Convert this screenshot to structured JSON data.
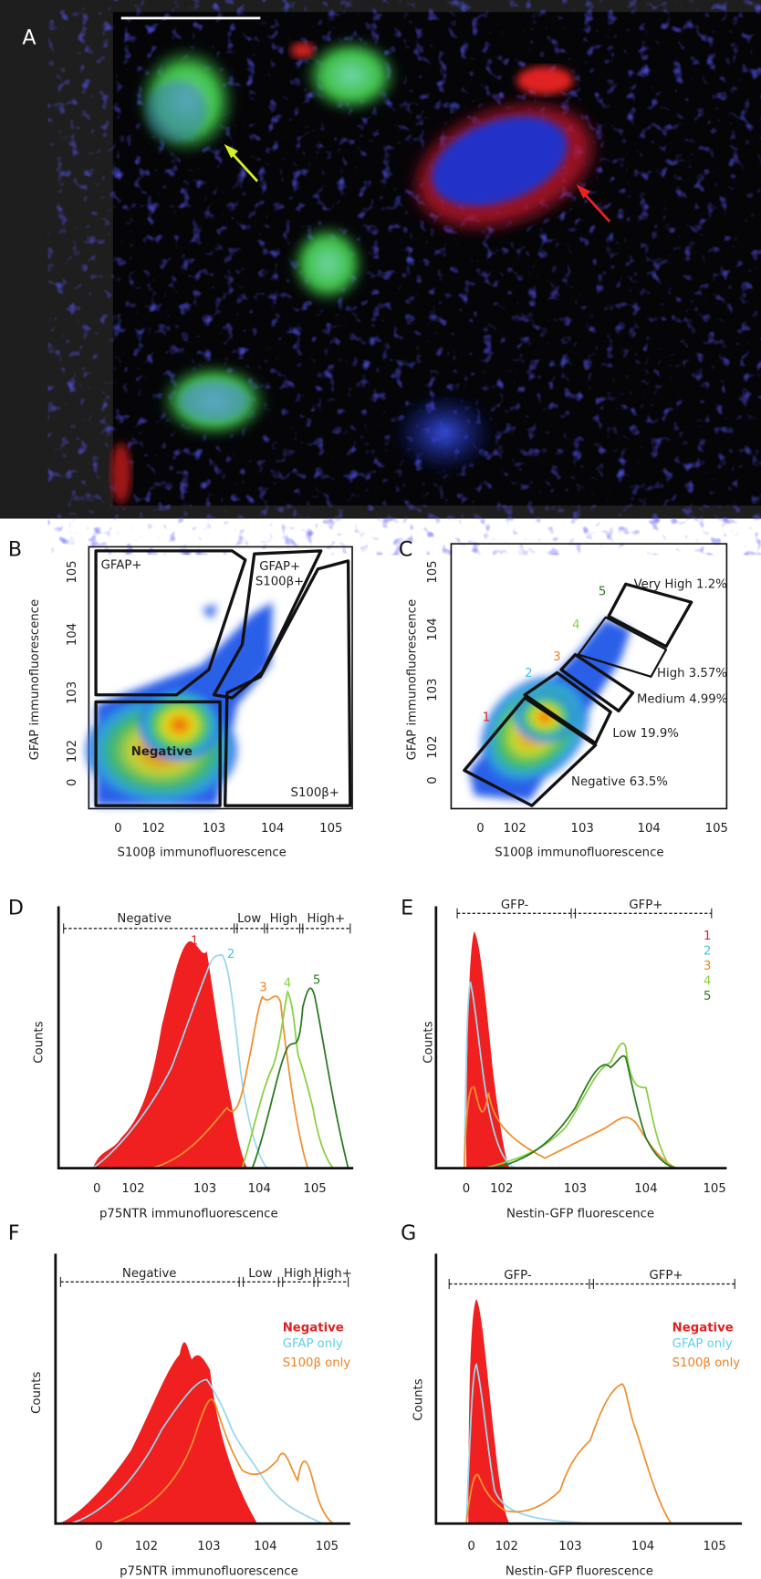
{
  "panel_a": {
    "label": "A"
  },
  "panel_b": {
    "label": "B",
    "y_axis_title": "GFAP immunofluorescence",
    "x_axis_title": "S100β immunofluorescence",
    "y_ticks": [
      "105",
      "104",
      "103",
      "102",
      "0"
    ],
    "x_ticks": [
      "0",
      "102",
      "103",
      "104",
      "105"
    ],
    "gates": {
      "gfap": "GFAP+",
      "double": [
        "GFAP+",
        "S100β+"
      ],
      "negative": "Negative",
      "s100": "S100β+"
    }
  },
  "panel_c": {
    "label": "C",
    "y_axis_title": "GFAP immunofluorescence",
    "x_axis_title": "S100β immunofluorescence",
    "y_ticks": [
      "105",
      "104",
      "103",
      "102",
      "0"
    ],
    "x_ticks": [
      "0",
      "102",
      "103",
      "104",
      "105"
    ],
    "gate_numbers": [
      "1",
      "2",
      "3",
      "4",
      "5"
    ],
    "gates": [
      "Very High 1.2%",
      "High 3.57%",
      "Medium 4.99%",
      "Low 19.9%",
      "Negative 63.5%"
    ]
  },
  "panel_d": {
    "label": "D",
    "y_axis_title": "Counts",
    "x_axis_title": "p75NTR immunofluorescence",
    "x_ticks": [
      "0",
      "102",
      "103",
      "104",
      "105"
    ],
    "ranges": [
      "Negative",
      "Low",
      "High",
      "High+"
    ],
    "curve_numbers": [
      "1",
      "2",
      "3",
      "4",
      "5"
    ]
  },
  "panel_e": {
    "label": "E",
    "y_axis_title": "Counts",
    "x_axis_title": "Nestin-GFP fluorescence",
    "x_ticks": [
      "0",
      "102",
      "103",
      "104",
      "105"
    ],
    "ranges": [
      "GFP-",
      "GFP+"
    ],
    "legend": [
      "1",
      "2",
      "3",
      "4",
      "5"
    ]
  },
  "panel_f": {
    "label": "F",
    "y_axis_title": "Counts",
    "x_axis_title": "p75NTR immunofluorescence",
    "x_ticks": [
      "0",
      "102",
      "103",
      "104",
      "105"
    ],
    "ranges": [
      "Negative",
      "Low",
      "High",
      "High+"
    ],
    "legend": [
      "Negative",
      "GFAP only",
      "S100β only"
    ]
  },
  "panel_g": {
    "label": "G",
    "y_axis_title": "Counts",
    "x_axis_title": "Nestin-GFP fluorescence",
    "x_ticks": [
      "0",
      "102",
      "103",
      "104",
      "105"
    ],
    "ranges": [
      "GFP-",
      "GFP+"
    ],
    "legend": [
      "Negative",
      "GFAP only",
      "S100β only"
    ]
  }
}
